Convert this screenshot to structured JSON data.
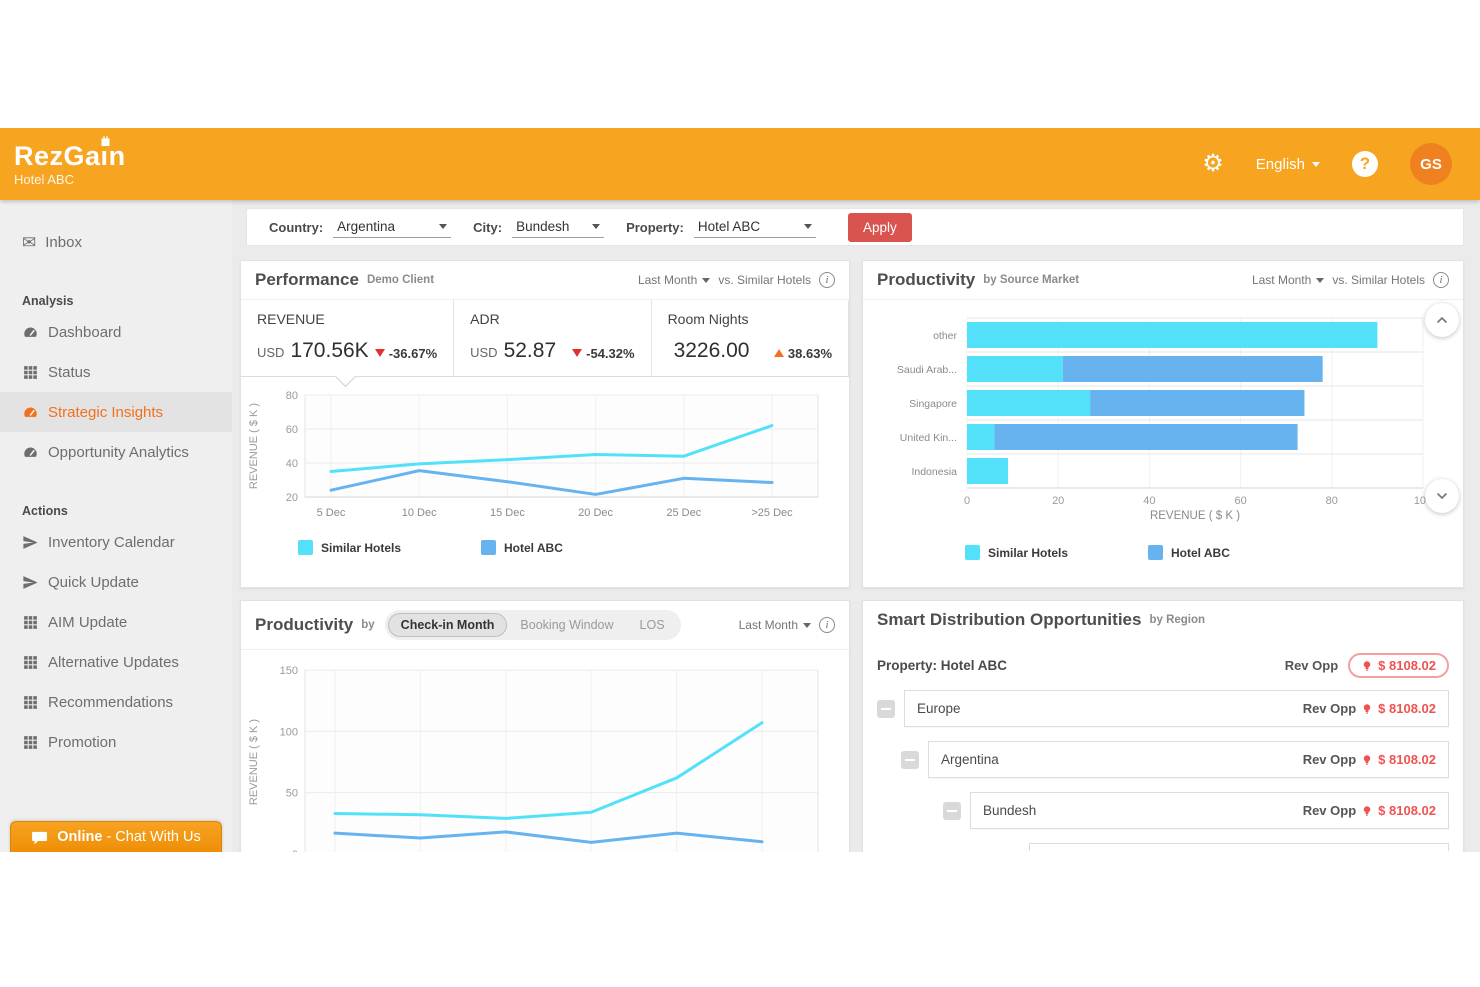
{
  "header": {
    "brand": "RezGain",
    "brand_prefix": "RezGa",
    "brand_i": "ı",
    "brand_suffix": "n",
    "subtitle": "Hotel ABC",
    "language": "English",
    "avatar_initials": "GS",
    "help_glyph": "?",
    "gear_glyph": "⚙"
  },
  "sidebar": {
    "inbox_label": "Inbox",
    "inbox_glyph": "✉",
    "sections": [
      {
        "title": "Analysis",
        "items": [
          {
            "label": "Dashboard",
            "icon": "gauge-icon",
            "active": false
          },
          {
            "label": "Status",
            "icon": "grid-icon",
            "active": false
          },
          {
            "label": "Strategic Insights",
            "icon": "gauge-icon",
            "active": true
          },
          {
            "label": "Opportunity Analytics",
            "icon": "gauge-icon",
            "active": false
          }
        ]
      },
      {
        "title": "Actions",
        "items": [
          {
            "label": "Inventory Calendar",
            "icon": "send-icon",
            "active": false
          },
          {
            "label": "Quick Update",
            "icon": "send-icon",
            "active": false
          },
          {
            "label": "AIM Update",
            "icon": "grid-icon",
            "active": false
          },
          {
            "label": "Alternative Updates",
            "icon": "grid-icon",
            "active": false
          },
          {
            "label": "Recommendations",
            "icon": "grid-icon",
            "active": false
          },
          {
            "label": "Promotion",
            "icon": "grid-icon",
            "active": false
          }
        ]
      }
    ],
    "chat_online": "Online",
    "chat_rest": "- Chat With Us"
  },
  "filters": {
    "country_label": "Country:",
    "country_value": "Argentina",
    "city_label": "City:",
    "city_value": "Bundesh",
    "property_label": "Property:",
    "property_value": "Hotel ABC",
    "apply_label": "Apply"
  },
  "panels": {
    "performance": {
      "title": "Performance",
      "subtitle": "Demo Client",
      "period": "Last Month",
      "compare": "vs. Similar Hotels",
      "kpis": [
        {
          "label": "REVENUE",
          "currency": "USD",
          "value": "170.56K",
          "delta": "-36.67%",
          "direction": "down"
        },
        {
          "label": "ADR",
          "currency": "USD",
          "value": "52.87",
          "delta": "-54.32%",
          "direction": "down"
        },
        {
          "label": "Room Nights",
          "currency": "",
          "value": "3226.00",
          "delta": "38.63%",
          "direction": "up"
        }
      ]
    },
    "source_market": {
      "title": "Productivity",
      "subtitle": "by Source Market",
      "period": "Last Month",
      "compare": "vs. Similar Hotels"
    },
    "checkin": {
      "title": "Productivity",
      "by_label": "by",
      "tabs": [
        "Check-in Month",
        "Booking Window",
        "LOS"
      ],
      "active_tab": 0,
      "period": "Last Month"
    },
    "smart": {
      "title": "Smart Distribution Opportunities",
      "subtitle": "by Region",
      "property_line": "Property: Hotel ABC",
      "rev_opp_label": "Rev Opp",
      "rev_opp_value": "$ 8108.02",
      "rows": [
        {
          "label": "Europe",
          "rev_opp": "$ 8108.02"
        },
        {
          "label": "Argentina",
          "rev_opp": "$ 8108.02"
        },
        {
          "label": "Bundesh",
          "rev_opp": "$ 8108.02"
        }
      ]
    }
  },
  "colors": {
    "header_orange": "#F7A521",
    "avatar_orange": "#F08121",
    "active_item_orange": "#F3701D",
    "apply_red": "#D9534F",
    "delta_down_red": "#E03131",
    "delta_up_orange": "#F2711C",
    "series_cyan": "#53E1F9",
    "series_blue": "#66B3EF",
    "rev_opp_red": "#EF5350"
  },
  "chart_data": [
    {
      "id": "perf-chart",
      "type": "line",
      "title": "Performance vs Similar Hotels by date",
      "x": [
        "5 Dec",
        "10 Dec",
        "15 Dec",
        "20 Dec",
        "25 Dec",
        ">25 Dec"
      ],
      "series": [
        {
          "name": "Similar Hotels",
          "color": "#53E1F9",
          "values": [
            35,
            39.5,
            42,
            45,
            44,
            62
          ]
        },
        {
          "name": "Hotel ABC",
          "color": "#66B3EF",
          "values": [
            24,
            35.5,
            29,
            21.5,
            31,
            28.5
          ]
        }
      ],
      "ylabel": "REVENUE ( $ K )",
      "ylim": [
        20,
        80
      ],
      "yticks": [
        20,
        40,
        60,
        80
      ],
      "grid": true,
      "legend": "bottom"
    },
    {
      "id": "source-chart",
      "type": "bar",
      "orientation": "horizontal",
      "stacked": true,
      "title": "Productivity by Source Market",
      "categories": [
        "other",
        "Saudi Arab...",
        "Singapore",
        "United Kin...",
        "Indonesia"
      ],
      "series": [
        {
          "name": "Similar Hotels",
          "color": "#53E1F9",
          "values": [
            90,
            21,
            27,
            6,
            9
          ]
        },
        {
          "name": "Hotel ABC",
          "color": "#66B3EF",
          "values": [
            0,
            57,
            47,
            66.5,
            0
          ]
        }
      ],
      "xlabel": "REVENUE ( $ K )",
      "xlim": [
        0,
        100
      ],
      "xticks": [
        0,
        20,
        40,
        60,
        80,
        100
      ],
      "grid": true,
      "legend": "bottom"
    },
    {
      "id": "checkin-chart",
      "type": "line",
      "title": "Productivity by Check-in Month",
      "x": [
        "",
        "",
        "",
        "",
        "",
        ""
      ],
      "x_labels_note": "x-axis tick labels clipped below viewport edge",
      "series": [
        {
          "name": "Similar Hotels",
          "color": "#53E1F9",
          "values": [
            33,
            32,
            29,
            34,
            62,
            107
          ]
        },
        {
          "name": "Hotel ABC",
          "color": "#66B3EF",
          "values": [
            17,
            13,
            18,
            9.5,
            17,
            10
          ]
        }
      ],
      "ylabel": "REVENUE ( $ K )",
      "ylim": [
        0,
        150
      ],
      "yticks": [
        0,
        50,
        100,
        150
      ],
      "grid": true,
      "legend": "none"
    }
  ]
}
